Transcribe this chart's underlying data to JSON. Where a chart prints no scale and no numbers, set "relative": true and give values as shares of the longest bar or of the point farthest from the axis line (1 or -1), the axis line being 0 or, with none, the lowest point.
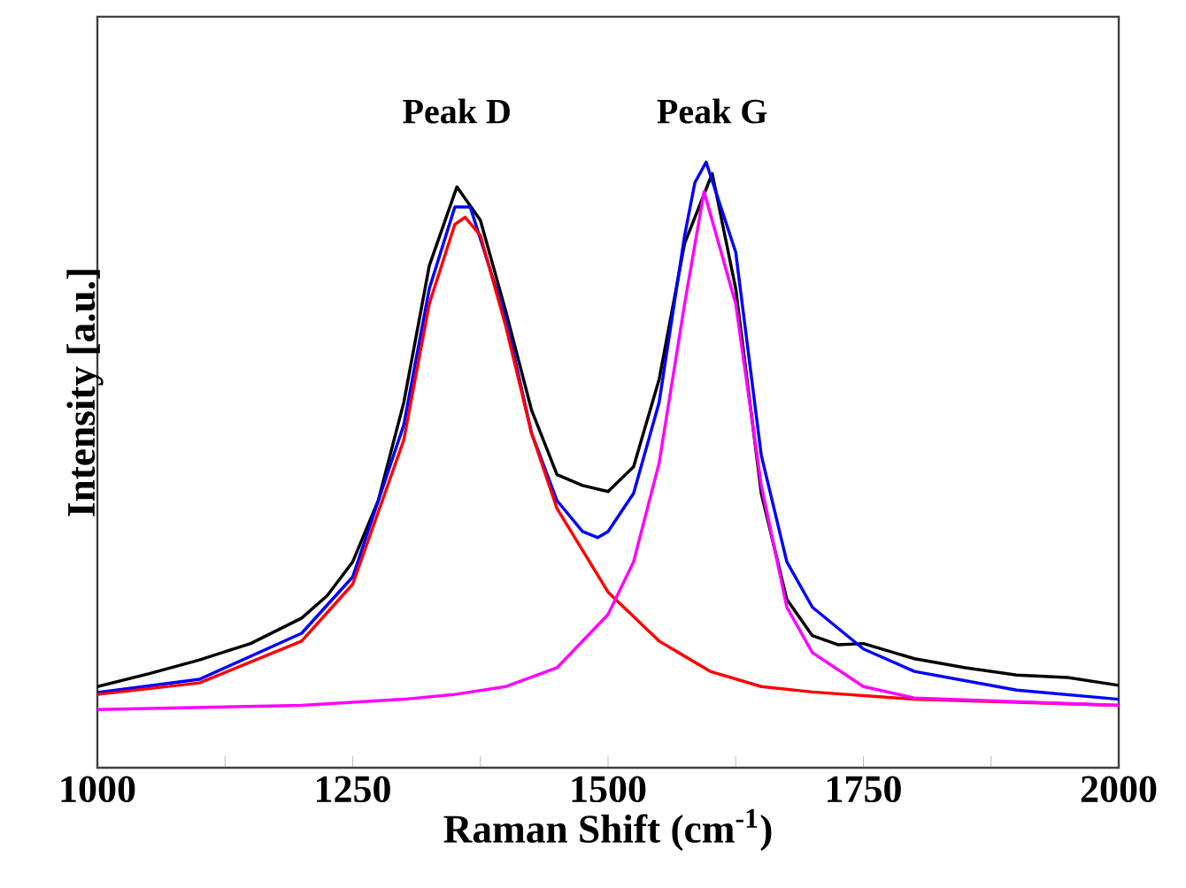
{
  "chart_data": {
    "type": "line",
    "xlabel": "Raman Shift (cm$^{-1}$)",
    "ylabel": "Intensity [a.u.]",
    "relative": true,
    "xlim": [
      1000,
      2000
    ],
    "xticks": [
      1000,
      {
        "value": 1125,
        "label": null
      },
      1250,
      {
        "value": 1375,
        "label": null
      },
      1500,
      {
        "value": 1625,
        "label": null
      },
      1750,
      {
        "value": 1875,
        "label": null
      },
      2000
    ],
    "annotations": [
      "Peak D",
      "Peak G"
    ],
    "series": [
      {
        "color": "#000000",
        "x": [
          1000,
          1050,
          1100,
          1150,
          1200,
          1225,
          1250,
          1275,
          1300,
          1325,
          1352,
          1375,
          1400,
          1425,
          1450,
          1475,
          1500,
          1525,
          1550,
          1575,
          1602,
          1625,
          1650,
          1675,
          1700,
          1725,
          1750,
          1800,
          1850,
          1900,
          1950,
          2000
        ],
        "values": [
          0.134,
          0.155,
          0.178,
          0.205,
          0.247,
          0.284,
          0.34,
          0.441,
          0.603,
          0.829,
          0.959,
          0.904,
          0.753,
          0.591,
          0.484,
          0.466,
          0.456,
          0.497,
          0.641,
          0.866,
          0.981,
          0.791,
          0.453,
          0.278,
          0.218,
          0.203,
          0.205,
          0.18,
          0.165,
          0.153,
          0.149,
          0.136
        ]
      },
      {
        "color": "#0000ff",
        "x": [
          1000,
          1100,
          1200,
          1250,
          1300,
          1325,
          1350,
          1365,
          1400,
          1425,
          1450,
          1475,
          1490,
          1500,
          1525,
          1550,
          1575,
          1585,
          1596,
          1625,
          1650,
          1675,
          1700,
          1750,
          1800,
          1900,
          2000
        ],
        "values": [
          0.124,
          0.146,
          0.222,
          0.315,
          0.566,
          0.791,
          0.926,
          0.926,
          0.741,
          0.553,
          0.441,
          0.39,
          0.38,
          0.39,
          0.453,
          0.603,
          0.879,
          0.966,
          1.0,
          0.851,
          0.516,
          0.34,
          0.265,
          0.196,
          0.159,
          0.128,
          0.113
        ]
      },
      {
        "color": "#ff0000",
        "x": [
          1000,
          1100,
          1200,
          1250,
          1300,
          1325,
          1350,
          1360,
          1375,
          1400,
          1425,
          1450,
          1500,
          1550,
          1600,
          1650,
          1700,
          1800,
          2000
        ],
        "values": [
          0.121,
          0.14,
          0.209,
          0.303,
          0.541,
          0.766,
          0.897,
          0.909,
          0.879,
          0.728,
          0.553,
          0.428,
          0.29,
          0.209,
          0.159,
          0.134,
          0.125,
          0.113,
          0.103
        ]
      },
      {
        "color": "#ff00ff",
        "x": [
          1000,
          1200,
          1300,
          1350,
          1400,
          1450,
          1500,
          1525,
          1550,
          1575,
          1594,
          1625,
          1650,
          1675,
          1700,
          1750,
          1800,
          2000
        ],
        "values": [
          0.096,
          0.103,
          0.113,
          0.121,
          0.134,
          0.165,
          0.253,
          0.34,
          0.503,
          0.766,
          0.951,
          0.766,
          0.466,
          0.265,
          0.19,
          0.134,
          0.115,
          0.103
        ]
      }
    ]
  }
}
